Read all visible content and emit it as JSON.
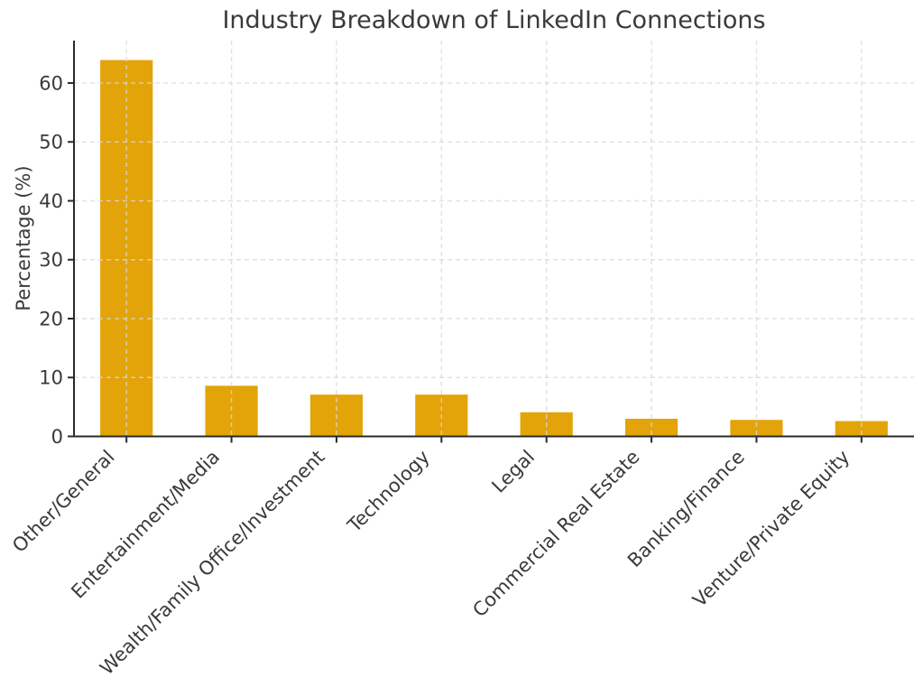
{
  "chart_data": {
    "type": "bar",
    "title": "Industry Breakdown of LinkedIn Connections",
    "ylabel": "Percentage (%)",
    "xlabel": "",
    "categories": [
      "Other/General",
      "Entertainment/Media",
      "Wealth/Family Office/Investment",
      "Technology",
      "Legal",
      "Commercial Real Estate",
      "Banking/Finance",
      "Venture/Private Equity"
    ],
    "values": [
      63.9,
      8.6,
      7.1,
      7.1,
      4.1,
      3.0,
      2.8,
      2.6
    ],
    "yticks": [
      0,
      10,
      20,
      30,
      40,
      50,
      60
    ],
    "ylim": [
      0,
      67.2
    ],
    "xtick_rotation_deg": 45,
    "legend": "none",
    "grid": "dashed, horizontal and vertical, drawn above bars",
    "bar_width_fraction": 0.5,
    "colors": {
      "bar": "#E3A40A",
      "grid": "#D9D9D9",
      "axis": "#2A2A2A",
      "text": "#3A3A3A",
      "background": "#FFFFFF"
    }
  }
}
